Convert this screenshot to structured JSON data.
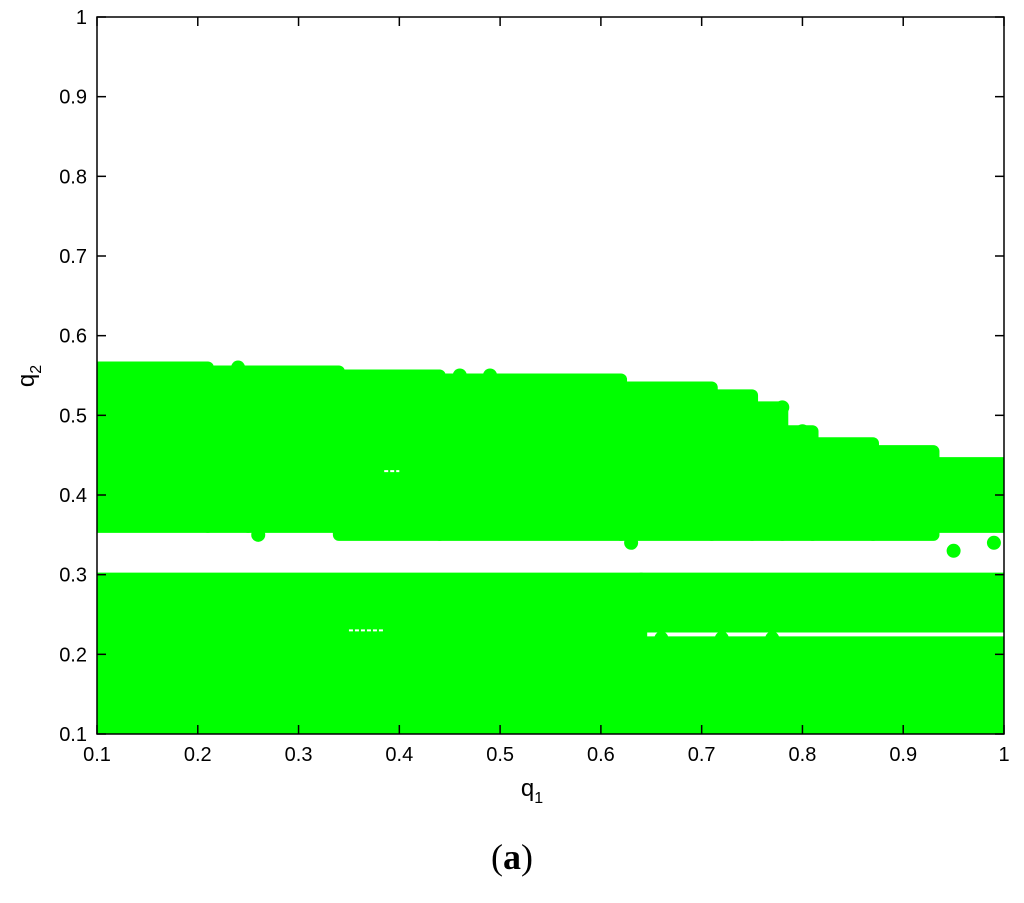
{
  "chart_data": {
    "type": "scatter",
    "xlabel": {
      "base": "q",
      "sub": "1"
    },
    "ylabel": {
      "base": "q",
      "sub": "2"
    },
    "xlim": [
      0.1,
      1
    ],
    "ylim": [
      0.1,
      1
    ],
    "xticks": [
      "0.1",
      "0.2",
      "0.3",
      "0.4",
      "0.5",
      "0.6",
      "0.7",
      "0.8",
      "0.9",
      "1"
    ],
    "yticks": [
      "0.1",
      "0.2",
      "0.3",
      "0.4",
      "0.5",
      "0.6",
      "0.7",
      "0.8",
      "0.9",
      "1"
    ],
    "grid": false,
    "marker_color": "#00ff00",
    "series": [
      {
        "regions_upper_band": [
          {
            "x": [
              0.1,
              0.21
            ],
            "y": [
              0.36,
              0.56
            ]
          },
          {
            "x": [
              0.21,
              0.25
            ],
            "y": [
              0.36,
              0.555
            ]
          },
          {
            "x": [
              0.25,
              0.34
            ],
            "y": [
              0.36,
              0.555
            ]
          },
          {
            "x": [
              0.34,
              0.44
            ],
            "y": [
              0.35,
              0.55
            ]
          },
          {
            "x": [
              0.44,
              0.62
            ],
            "y": [
              0.35,
              0.545
            ]
          },
          {
            "x": [
              0.62,
              0.71
            ],
            "y": [
              0.35,
              0.535
            ]
          },
          {
            "x": [
              0.71,
              0.75
            ],
            "y": [
              0.35,
              0.525
            ]
          },
          {
            "x": [
              0.75,
              0.78
            ],
            "y": [
              0.35,
              0.51
            ]
          },
          {
            "x": [
              0.78,
              0.81
            ],
            "y": [
              0.35,
              0.48
            ]
          },
          {
            "x": [
              0.81,
              0.87
            ],
            "y": [
              0.35,
              0.465
            ]
          },
          {
            "x": [
              0.87,
              0.93
            ],
            "y": [
              0.35,
              0.455
            ]
          },
          {
            "x": [
              0.93,
              1.0
            ],
            "y": [
              0.36,
              0.44
            ]
          }
        ],
        "regions_lower_band": [
          {
            "x": [
              0.1,
              1.0
            ],
            "y": [
              0.1,
              0.215
            ]
          },
          {
            "x": [
              0.1,
              0.64
            ],
            "y": [
              0.215,
              0.295
            ]
          },
          {
            "x": [
              0.64,
              1.0
            ],
            "y": [
              0.235,
              0.295
            ]
          }
        ],
        "isolated_points": [
          {
            "x": 0.24,
            "y": 0.56
          },
          {
            "x": 0.46,
            "y": 0.55
          },
          {
            "x": 0.49,
            "y": 0.55
          },
          {
            "x": 0.78,
            "y": 0.51
          },
          {
            "x": 0.77,
            "y": 0.48
          },
          {
            "x": 0.8,
            "y": 0.48
          },
          {
            "x": 0.26,
            "y": 0.35
          },
          {
            "x": 0.63,
            "y": 0.34
          },
          {
            "x": 0.95,
            "y": 0.33
          },
          {
            "x": 0.99,
            "y": 0.34
          },
          {
            "x": 0.72,
            "y": 0.22
          },
          {
            "x": 0.77,
            "y": 0.22
          },
          {
            "x": 0.66,
            "y": 0.22
          },
          {
            "x": 0.97,
            "y": 0.245
          }
        ],
        "gaps": [
          {
            "x": [
              0.385,
              0.4
            ],
            "y": [
              0.43,
              0.43
            ]
          },
          {
            "x": [
              0.35,
              0.385
            ],
            "y": [
              0.23,
              0.23
            ]
          }
        ]
      }
    ]
  },
  "panel_label": {
    "open": "(",
    "letter": "a",
    "close": ")"
  }
}
